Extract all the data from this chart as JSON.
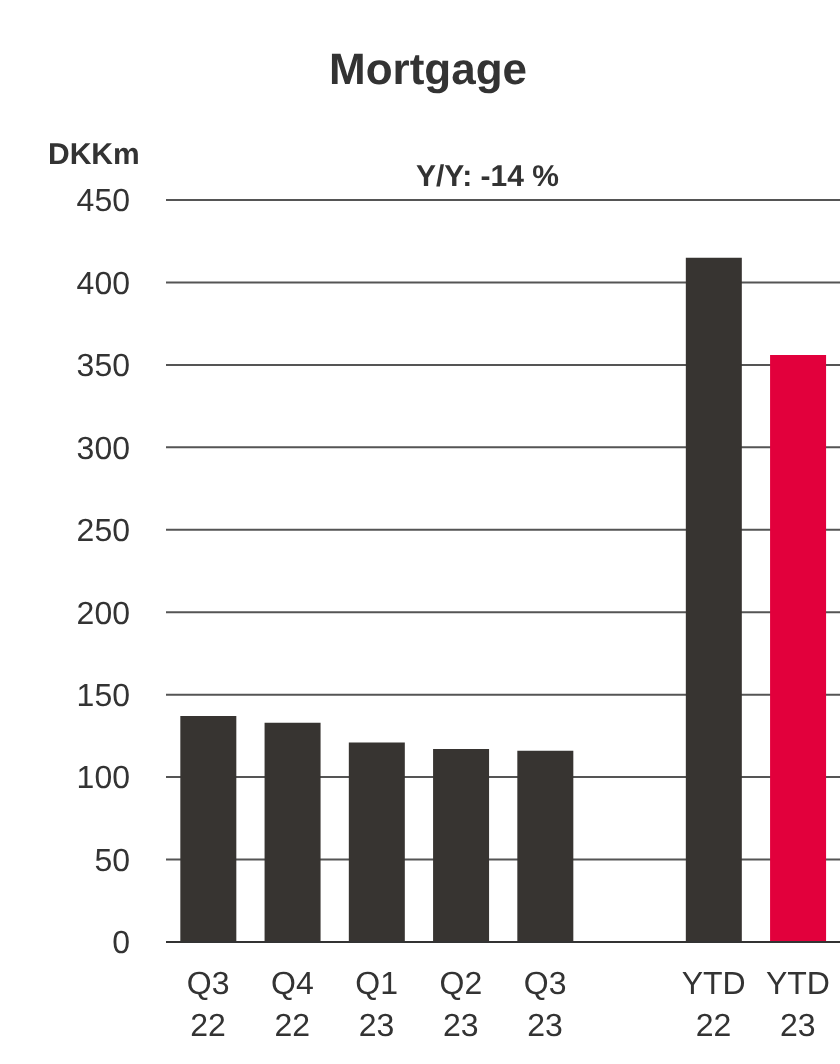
{
  "chart_data": {
    "type": "bar",
    "title": "Mortgage",
    "ylabel": "DKKm",
    "annotations": [
      "Y/Y: -14 %"
    ],
    "categories": [
      "Q3 22",
      "Q4 22",
      "Q1 23",
      "Q2 23",
      "Q3 23",
      null,
      "YTD 22",
      "YTD 23"
    ],
    "values": [
      137,
      133,
      121,
      117,
      116,
      null,
      415,
      356
    ],
    "colors": [
      "#373431",
      "#373431",
      "#373431",
      "#373431",
      "#373431",
      "#373431",
      "#373431",
      "#e2003c"
    ],
    "ylim": [
      0,
      450
    ],
    "yticks": [
      0,
      50,
      100,
      150,
      200,
      250,
      300,
      350,
      400,
      450
    ],
    "grid": "y"
  }
}
